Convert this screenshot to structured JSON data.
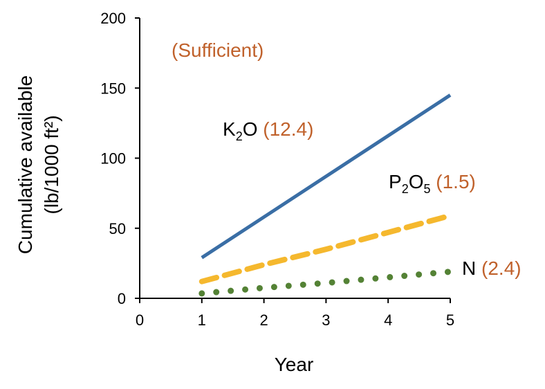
{
  "chart_data": {
    "type": "line",
    "title": "",
    "xlabel": "Year",
    "ylabel_line1": "Cumulative available",
    "ylabel_line2": "(lb/1000 ft²)",
    "xlim": [
      0,
      5
    ],
    "ylim": [
      0,
      200
    ],
    "xticks": [
      "0",
      "1",
      "2",
      "3",
      "4",
      "5"
    ],
    "yticks": [
      "0",
      "50",
      "100",
      "150",
      "200"
    ],
    "grid": false,
    "annotation": "(Sufficient)",
    "x": [
      1,
      2,
      3,
      4,
      5
    ],
    "series": [
      {
        "name": "K2O",
        "label_main": "K",
        "label_sub": "2",
        "label_tail": "O",
        "label_tail_sub": "",
        "rate": "(12.4)",
        "style": "solid",
        "color": "#3a6ea5",
        "values": [
          29,
          58,
          87,
          116,
          145
        ]
      },
      {
        "name": "P2O5",
        "label_main": "P",
        "label_sub": "2",
        "label_tail": "O",
        "label_tail_sub": "5",
        "rate": "(1.5)",
        "style": "dashed",
        "color": "#f5b82e",
        "values": [
          12,
          24,
          35,
          47,
          59
        ]
      },
      {
        "name": "N",
        "label_main": "N",
        "label_sub": "",
        "label_tail": "",
        "label_tail_sub": "",
        "rate": "(2.4)",
        "style": "dotted",
        "color": "#548235",
        "values": [
          3.5,
          7.5,
          11,
          15,
          19
        ]
      }
    ],
    "rate_color": "#c0612b"
  }
}
